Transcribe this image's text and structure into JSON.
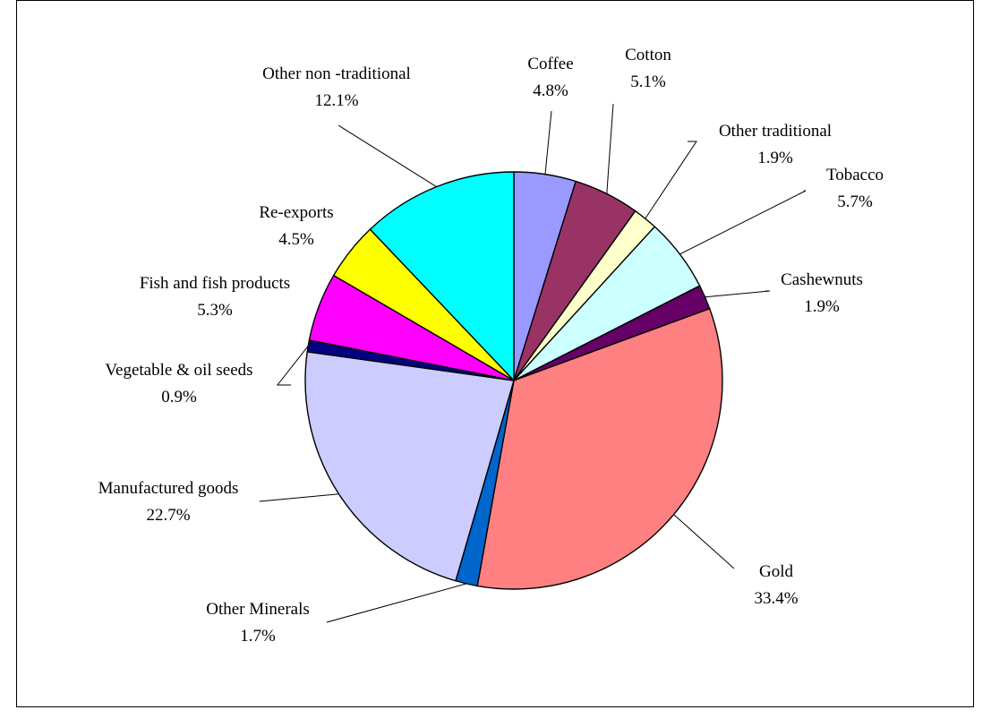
{
  "chart_data": {
    "type": "pie",
    "title": "",
    "start_angle_deg": 0,
    "direction": "clockwise",
    "slices": [
      {
        "label": "Coffee",
        "value": 4.8,
        "value_label": "4.8%",
        "color": "#9999FF"
      },
      {
        "label": "Cotton",
        "value": 5.1,
        "value_label": "5.1%",
        "color": "#993366"
      },
      {
        "label": "Other traditional",
        "value": 1.9,
        "value_label": "1.9%",
        "color": "#FFFFCC"
      },
      {
        "label": "Tobacco",
        "value": 5.7,
        "value_label": "5.7%",
        "color": "#CCFFFF"
      },
      {
        "label": "Cashewnuts",
        "value": 1.9,
        "value_label": "1.9%",
        "color": "#660066"
      },
      {
        "label": "Gold",
        "value": 33.4,
        "value_label": "33.4%",
        "color": "#FF8080"
      },
      {
        "label": "Other Minerals",
        "value": 1.7,
        "value_label": "1.7%",
        "color": "#0066CC"
      },
      {
        "label": "Manufactured goods",
        "value": 22.7,
        "value_label": "22.7%",
        "color": "#CCCCFF"
      },
      {
        "label": "Vegetable & oil seeds",
        "value": 0.9,
        "value_label": "0.9%",
        "color": "#000080"
      },
      {
        "label": "Fish and fish products",
        "value": 5.3,
        "value_label": "5.3%",
        "color": "#FF00FF"
      },
      {
        "label": "Re-exports",
        "value": 4.5,
        "value_label": "4.5%",
        "color": "#FFFF00"
      },
      {
        "label": "Other non -traditional",
        "value": 12.1,
        "value_label": "12.1%",
        "color": "#00FFFF"
      }
    ],
    "legend": "none"
  }
}
